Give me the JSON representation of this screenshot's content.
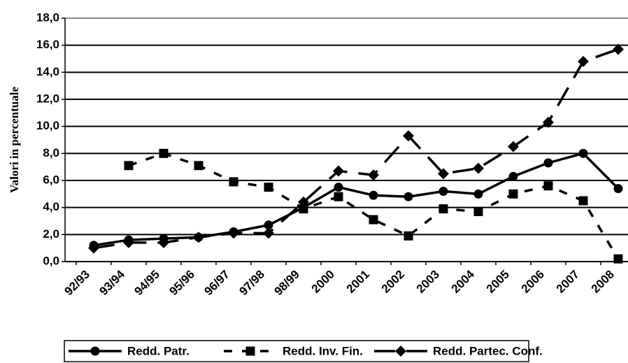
{
  "chart_data": {
    "type": "line",
    "y_label": "Valori in percentuale",
    "categories": [
      "92/93",
      "93/94",
      "94/95",
      "95/96",
      "96/97",
      "97/98",
      "98/99",
      "2000",
      "2001",
      "2002",
      "2003",
      "2004",
      "2005",
      "2006",
      "2007",
      "2008"
    ],
    "series": [
      {
        "name": "Redd. Patr.",
        "color": "#000000",
        "dash": "solid",
        "marker": "circle",
        "values": [
          1.2,
          1.6,
          1.7,
          1.8,
          2.2,
          2.7,
          4.0,
          5.5,
          4.9,
          4.8,
          5.2,
          5.0,
          6.3,
          7.3,
          8.0,
          5.4
        ]
      },
      {
        "name": "Redd. Inv. Fin.",
        "color": "#000000",
        "dash": "short",
        "marker": "square",
        "values": [
          null,
          7.1,
          8.0,
          7.1,
          5.9,
          5.5,
          3.9,
          4.8,
          3.1,
          1.9,
          3.9,
          3.7,
          5.0,
          5.6,
          4.5,
          0.2
        ]
      },
      {
        "name": "Redd. Partec. Conf.",
        "color": "#000000",
        "dash": "long",
        "marker": "diamond",
        "values": [
          1.0,
          1.4,
          1.4,
          1.8,
          2.1,
          2.1,
          4.4,
          6.7,
          6.4,
          9.3,
          6.5,
          6.9,
          8.5,
          10.3,
          14.8,
          15.7
        ]
      }
    ],
    "ylim": [
      0,
      18
    ],
    "yticks": [
      {
        "value": 0,
        "label": "0,0"
      },
      {
        "value": 2,
        "label": "2,0"
      },
      {
        "value": 4,
        "label": "4,0"
      },
      {
        "value": 6,
        "label": "6,0"
      },
      {
        "value": 8,
        "label": "8,0"
      },
      {
        "value": 10,
        "label": "10,0"
      },
      {
        "value": 12,
        "label": "12,0"
      },
      {
        "value": 14,
        "label": "14,0"
      },
      {
        "value": 16,
        "label": "16,0"
      },
      {
        "value": 18,
        "label": "18,0"
      }
    ],
    "grid": true,
    "legend": "bottom"
  }
}
